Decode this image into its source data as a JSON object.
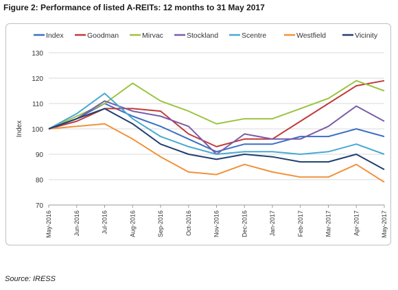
{
  "figure": {
    "title": "Figure 2: Performance of listed A-REITs: 12 months to 31 May 2017",
    "source": "Source: IRESS"
  },
  "chart_data": {
    "type": "line",
    "title": "",
    "xlabel": "",
    "ylabel": "Index",
    "ylim": [
      70,
      130
    ],
    "yticks": [
      "70",
      "80",
      "90",
      "100",
      "110",
      "120",
      "130"
    ],
    "x": [
      "May-2016",
      "Jun-2016",
      "Jul-2016",
      "Aug-2016",
      "Sep-2016",
      "Oct-2016",
      "Nov-2016",
      "Dec-2016",
      "Jan-2017",
      "Feb-2017",
      "Mar-2017",
      "Apr-2017",
      "May-2017"
    ],
    "grid": "horizontal",
    "legend_position": "top",
    "series": [
      {
        "name": "Index",
        "color": "#3b6fc4",
        "values": [
          100,
          104,
          110,
          105,
          101,
          96,
          91,
          94,
          94,
          97,
          97,
          100,
          97
        ]
      },
      {
        "name": "Goodman",
        "color": "#c0393b",
        "values": [
          100,
          103,
          108,
          108,
          107,
          98,
          93,
          96,
          96,
          103,
          110,
          117,
          119
        ]
      },
      {
        "name": "Mirvac",
        "color": "#9ac43e",
        "values": [
          100,
          105,
          110,
          118,
          111,
          107,
          102,
          104,
          104,
          108,
          112,
          119,
          115
        ]
      },
      {
        "name": "Stockland",
        "color": "#7a5ca8",
        "values": [
          100,
          104,
          111,
          107,
          105,
          101,
          90,
          98,
          96,
          96,
          101,
          109,
          103
        ]
      },
      {
        "name": "Scentre",
        "color": "#46a9d3",
        "values": [
          100,
          106,
          114,
          104,
          97,
          93,
          90,
          91,
          91,
          90,
          91,
          94,
          90
        ]
      },
      {
        "name": "Westfield",
        "color": "#f0913a",
        "values": [
          100,
          101,
          102,
          96,
          89,
          83,
          82,
          86,
          83,
          81,
          81,
          86,
          79
        ]
      },
      {
        "name": "Vicinity",
        "color": "#1f3e6e",
        "values": [
          100,
          104,
          108,
          102,
          94,
          90,
          88,
          90,
          89,
          87,
          87,
          90,
          84
        ]
      }
    ]
  }
}
